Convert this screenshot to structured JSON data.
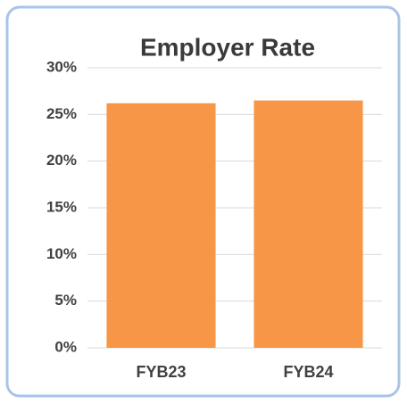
{
  "chart_data": {
    "type": "bar",
    "title": "Employer Rate",
    "categories": [
      "FYB23",
      "FYB24"
    ],
    "values": [
      26.2,
      26.5
    ],
    "color": "#f79646",
    "ylim": [
      0,
      30
    ],
    "yticks": [
      {
        "value": 0,
        "label": "0%"
      },
      {
        "value": 5,
        "label": "5%"
      },
      {
        "value": 10,
        "label": "10%"
      },
      {
        "value": 15,
        "label": "15%"
      },
      {
        "value": 20,
        "label": "20%"
      },
      {
        "value": 25,
        "label": "25%"
      },
      {
        "value": 30,
        "label": "30%"
      }
    ],
    "grid": true
  }
}
